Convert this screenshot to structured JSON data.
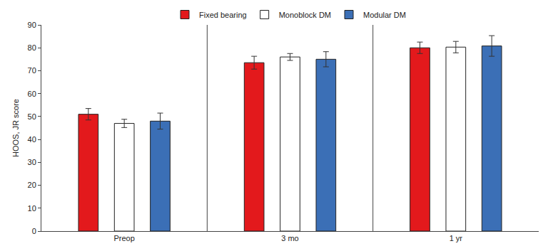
{
  "chart_data": {
    "type": "bar",
    "y_label": "HOOS, JR score",
    "categories": [
      "Preop",
      "3 mo",
      "1 yr"
    ],
    "series": [
      {
        "name": "Fixed bearing",
        "color": "#e3191c",
        "values": [
          51,
          73.5,
          80
        ],
        "error": [
          2.5,
          2.8,
          2.5
        ]
      },
      {
        "name": "Monoblock DM",
        "color": "#ffffff",
        "values": [
          47,
          76,
          80.3
        ],
        "error": [
          1.8,
          1.5,
          2.5
        ]
      },
      {
        "name": "Modular DM",
        "color": "#3b6fb6",
        "values": [
          48,
          75,
          80.8
        ],
        "error": [
          3.5,
          3.3,
          4.5
        ]
      }
    ],
    "ylim": [
      0,
      90
    ],
    "yticks": [
      0,
      10,
      20,
      30,
      40,
      50,
      60,
      70,
      80,
      90
    ],
    "grid": false,
    "legend": "top"
  }
}
